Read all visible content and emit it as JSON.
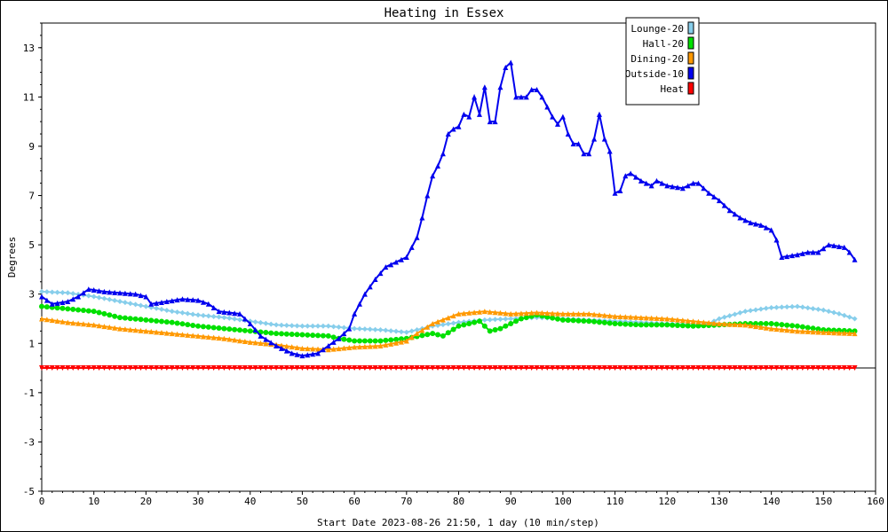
{
  "chart_data": {
    "type": "line",
    "title": "Heating in Essex",
    "xlabel": "Start Date 2023-08-26 21:50, 1 day (10 min/step)",
    "ylabel": "Degrees",
    "xlim": [
      0,
      160
    ],
    "ylim": [
      -5,
      14
    ],
    "xticks": [
      "0",
      "10",
      "20",
      "30",
      "40",
      "50",
      "60",
      "70",
      "80",
      "90",
      "100",
      "110",
      "120",
      "130",
      "140",
      "150",
      "160"
    ],
    "yticks": [
      "13",
      "11",
      "9",
      "7",
      "5",
      "3",
      "1",
      "-1",
      "-3",
      "-5"
    ],
    "grid": true,
    "legend_position": "top-right",
    "series": [
      {
        "name": "Lounge-20",
        "color": "#87ceeb",
        "marker": "diamond",
        "points": [
          [
            0,
            3.1
          ],
          [
            5,
            3.05
          ],
          [
            10,
            2.9
          ],
          [
            15,
            2.7
          ],
          [
            20,
            2.5
          ],
          [
            25,
            2.3
          ],
          [
            30,
            2.15
          ],
          [
            35,
            2.05
          ],
          [
            40,
            1.9
          ],
          [
            45,
            1.75
          ],
          [
            50,
            1.7
          ],
          [
            55,
            1.7
          ],
          [
            60,
            1.6
          ],
          [
            65,
            1.55
          ],
          [
            70,
            1.45
          ],
          [
            75,
            1.7
          ],
          [
            80,
            1.85
          ],
          [
            85,
            1.95
          ],
          [
            90,
            2.0
          ],
          [
            95,
            2.05
          ],
          [
            100,
            2.0
          ],
          [
            105,
            1.95
          ],
          [
            110,
            1.9
          ],
          [
            115,
            1.85
          ],
          [
            120,
            1.8
          ],
          [
            125,
            1.75
          ],
          [
            128,
            1.8
          ],
          [
            130,
            2.0
          ],
          [
            135,
            2.3
          ],
          [
            140,
            2.45
          ],
          [
            145,
            2.5
          ],
          [
            150,
            2.35
          ],
          [
            153,
            2.2
          ],
          [
            156,
            2.0
          ]
        ]
      },
      {
        "name": "Hall-20",
        "color": "#00e000",
        "marker": "circle",
        "points": [
          [
            0,
            2.5
          ],
          [
            5,
            2.4
          ],
          [
            10,
            2.3
          ],
          [
            15,
            2.05
          ],
          [
            20,
            1.95
          ],
          [
            25,
            1.85
          ],
          [
            30,
            1.7
          ],
          [
            35,
            1.6
          ],
          [
            40,
            1.5
          ],
          [
            45,
            1.4
          ],
          [
            50,
            1.35
          ],
          [
            55,
            1.3
          ],
          [
            57,
            1.2
          ],
          [
            60,
            1.1
          ],
          [
            65,
            1.1
          ],
          [
            70,
            1.2
          ],
          [
            75,
            1.4
          ],
          [
            77,
            1.3
          ],
          [
            80,
            1.7
          ],
          [
            84,
            1.9
          ],
          [
            86,
            1.5
          ],
          [
            88,
            1.6
          ],
          [
            92,
            2.0
          ],
          [
            95,
            2.15
          ],
          [
            100,
            1.95
          ],
          [
            105,
            1.9
          ],
          [
            110,
            1.8
          ],
          [
            115,
            1.75
          ],
          [
            120,
            1.75
          ],
          [
            125,
            1.7
          ],
          [
            130,
            1.75
          ],
          [
            135,
            1.8
          ],
          [
            140,
            1.8
          ],
          [
            145,
            1.7
          ],
          [
            150,
            1.55
          ],
          [
            156,
            1.5
          ]
        ]
      },
      {
        "name": "Dining-20",
        "color": "#ff9900",
        "marker": "triangle",
        "points": [
          [
            0,
            2.0
          ],
          [
            5,
            1.85
          ],
          [
            10,
            1.75
          ],
          [
            15,
            1.6
          ],
          [
            20,
            1.5
          ],
          [
            25,
            1.4
          ],
          [
            30,
            1.3
          ],
          [
            35,
            1.2
          ],
          [
            40,
            1.05
          ],
          [
            45,
            0.95
          ],
          [
            50,
            0.8
          ],
          [
            55,
            0.75
          ],
          [
            60,
            0.85
          ],
          [
            65,
            0.9
          ],
          [
            70,
            1.1
          ],
          [
            72,
            1.4
          ],
          [
            75,
            1.8
          ],
          [
            80,
            2.2
          ],
          [
            85,
            2.3
          ],
          [
            90,
            2.2
          ],
          [
            95,
            2.25
          ],
          [
            100,
            2.2
          ],
          [
            105,
            2.2
          ],
          [
            110,
            2.1
          ],
          [
            115,
            2.05
          ],
          [
            120,
            2.0
          ],
          [
            125,
            1.9
          ],
          [
            130,
            1.8
          ],
          [
            135,
            1.75
          ],
          [
            140,
            1.6
          ],
          [
            145,
            1.5
          ],
          [
            150,
            1.45
          ],
          [
            156,
            1.4
          ]
        ]
      },
      {
        "name": "Outside-10",
        "color": "#0000ee",
        "marker": "triangle",
        "points": [
          [
            0,
            2.9
          ],
          [
            2,
            2.6
          ],
          [
            5,
            2.7
          ],
          [
            7,
            2.9
          ],
          [
            9,
            3.2
          ],
          [
            12,
            3.1
          ],
          [
            15,
            3.05
          ],
          [
            18,
            3.0
          ],
          [
            20,
            2.9
          ],
          [
            21,
            2.6
          ],
          [
            24,
            2.7
          ],
          [
            27,
            2.8
          ],
          [
            30,
            2.75
          ],
          [
            32,
            2.6
          ],
          [
            34,
            2.3
          ],
          [
            38,
            2.2
          ],
          [
            40,
            1.8
          ],
          [
            42,
            1.3
          ],
          [
            45,
            0.9
          ],
          [
            48,
            0.6
          ],
          [
            50,
            0.5
          ],
          [
            53,
            0.6
          ],
          [
            55,
            0.9
          ],
          [
            57,
            1.2
          ],
          [
            59,
            1.6
          ],
          [
            60,
            2.2
          ],
          [
            62,
            3.0
          ],
          [
            64,
            3.6
          ],
          [
            66,
            4.1
          ],
          [
            68,
            4.3
          ],
          [
            70,
            4.5
          ],
          [
            72,
            5.3
          ],
          [
            73,
            6.1
          ],
          [
            74,
            7.0
          ],
          [
            75,
            7.8
          ],
          [
            76,
            8.2
          ],
          [
            77,
            8.7
          ],
          [
            78,
            9.5
          ],
          [
            79,
            9.7
          ],
          [
            80,
            9.8
          ],
          [
            81,
            10.3
          ],
          [
            82,
            10.2
          ],
          [
            83,
            11.0
          ],
          [
            84,
            10.3
          ],
          [
            85,
            11.4
          ],
          [
            86,
            10.0
          ],
          [
            87,
            10.0
          ],
          [
            88,
            11.4
          ],
          [
            89,
            12.2
          ],
          [
            90,
            12.4
          ],
          [
            91,
            11.0
          ],
          [
            93,
            11.0
          ],
          [
            94,
            11.3
          ],
          [
            95,
            11.3
          ],
          [
            96,
            11.0
          ],
          [
            98,
            10.2
          ],
          [
            99,
            9.9
          ],
          [
            100,
            10.2
          ],
          [
            101,
            9.5
          ],
          [
            102,
            9.1
          ],
          [
            103,
            9.1
          ],
          [
            104,
            8.7
          ],
          [
            105,
            8.7
          ],
          [
            106,
            9.3
          ],
          [
            107,
            10.3
          ],
          [
            108,
            9.3
          ],
          [
            109,
            8.8
          ],
          [
            110,
            7.1
          ],
          [
            111,
            7.2
          ],
          [
            112,
            7.8
          ],
          [
            113,
            7.9
          ],
          [
            115,
            7.6
          ],
          [
            117,
            7.4
          ],
          [
            118,
            7.6
          ],
          [
            120,
            7.4
          ],
          [
            123,
            7.3
          ],
          [
            125,
            7.5
          ],
          [
            126,
            7.5
          ],
          [
            128,
            7.1
          ],
          [
            130,
            6.8
          ],
          [
            132,
            6.4
          ],
          [
            134,
            6.1
          ],
          [
            136,
            5.9
          ],
          [
            138,
            5.8
          ],
          [
            140,
            5.6
          ],
          [
            141,
            5.2
          ],
          [
            142,
            4.5
          ],
          [
            145,
            4.6
          ],
          [
            147,
            4.7
          ],
          [
            149,
            4.7
          ],
          [
            151,
            5.0
          ],
          [
            154,
            4.9
          ],
          [
            155,
            4.7
          ],
          [
            156,
            4.4
          ]
        ]
      },
      {
        "name": "Heat",
        "color": "#ff0000",
        "marker": "triangle-down",
        "points": [
          [
            0,
            0
          ],
          [
            156,
            0
          ]
        ]
      }
    ]
  }
}
